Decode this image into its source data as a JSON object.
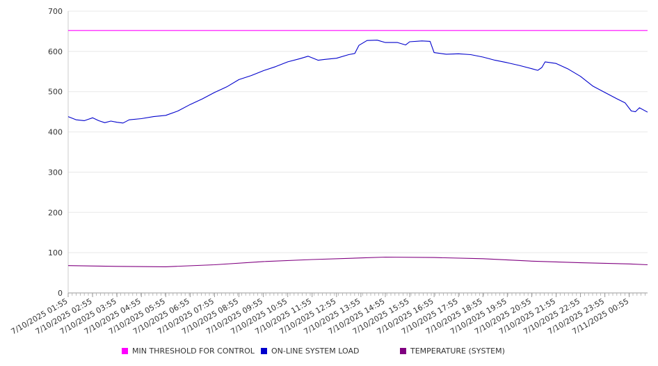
{
  "chart_data": {
    "type": "line",
    "x": [
      "7/10/2025 01:55",
      "7/10/2025 02:55",
      "7/10/2025 03:55",
      "7/10/2025 04:55",
      "7/10/2025 05:55",
      "7/10/2025 06:55",
      "7/10/2025 07:55",
      "7/10/2025 08:55",
      "7/10/2025 09:55",
      "7/10/2025 10:55",
      "7/10/2025 11:55",
      "7/10/2025 12:55",
      "7/10/2025 13:55",
      "7/10/2025 14:55",
      "7/10/2025 15:55",
      "7/10/2025 16:55",
      "7/10/2025 17:55",
      "7/10/2025 18:55",
      "7/10/2025 19:55",
      "7/10/2025 20:55",
      "7/10/2025 21:55",
      "7/10/2025 22:55",
      "7/10/2025 23:55",
      "7/11/2025 00:55"
    ],
    "ylim": [
      0,
      700
    ],
    "yticks": [
      0,
      100,
      200,
      300,
      400,
      500,
      600,
      700
    ],
    "grid": true,
    "legend_position": "bottom",
    "series": [
      {
        "name": "MIN THRESHOLD FOR CONTROL",
        "color": "#ff00ff",
        "points": [
          [
            "7/10/2025 01:55",
            652
          ],
          [
            "7/11/2025 01:40",
            652
          ]
        ]
      },
      {
        "name": "ON-LINE SYSTEM LOAD",
        "color": "#0000cc",
        "points": [
          [
            "7/10/2025 01:55",
            438
          ],
          [
            "7/10/2025 02:15",
            430
          ],
          [
            "7/10/2025 02:35",
            428
          ],
          [
            "7/10/2025 02:55",
            435
          ],
          [
            "7/10/2025 03:10",
            428
          ],
          [
            "7/10/2025 03:25",
            423
          ],
          [
            "7/10/2025 03:40",
            427
          ],
          [
            "7/10/2025 03:55",
            424
          ],
          [
            "7/10/2025 04:10",
            422
          ],
          [
            "7/10/2025 04:25",
            430
          ],
          [
            "7/10/2025 04:55",
            433
          ],
          [
            "7/10/2025 05:25",
            438
          ],
          [
            "7/10/2025 05:55",
            441
          ],
          [
            "7/10/2025 06:25",
            452
          ],
          [
            "7/10/2025 06:55",
            468
          ],
          [
            "7/10/2025 07:25",
            482
          ],
          [
            "7/10/2025 07:55",
            498
          ],
          [
            "7/10/2025 08:25",
            512
          ],
          [
            "7/10/2025 08:55",
            530
          ],
          [
            "7/10/2025 09:25",
            540
          ],
          [
            "7/10/2025 09:55",
            552
          ],
          [
            "7/10/2025 10:25",
            562
          ],
          [
            "7/10/2025 10:55",
            574
          ],
          [
            "7/10/2025 11:25",
            582
          ],
          [
            "7/10/2025 11:45",
            588
          ],
          [
            "7/10/2025 12:10",
            578
          ],
          [
            "7/10/2025 12:25",
            580
          ],
          [
            "7/10/2025 12:55",
            583
          ],
          [
            "7/10/2025 13:25",
            592
          ],
          [
            "7/10/2025 13:40",
            595
          ],
          [
            "7/10/2025 13:50",
            615
          ],
          [
            "7/10/2025 14:10",
            627
          ],
          [
            "7/10/2025 14:35",
            628
          ],
          [
            "7/10/2025 14:55",
            622
          ],
          [
            "7/10/2025 15:25",
            622
          ],
          [
            "7/10/2025 15:45",
            616
          ],
          [
            "7/10/2025 15:55",
            624
          ],
          [
            "7/10/2025 16:25",
            626
          ],
          [
            "7/10/2025 16:45",
            625
          ],
          [
            "7/10/2025 16:55",
            597
          ],
          [
            "7/10/2025 17:25",
            593
          ],
          [
            "7/10/2025 17:55",
            594
          ],
          [
            "7/10/2025 18:25",
            592
          ],
          [
            "7/10/2025 18:55",
            586
          ],
          [
            "7/10/2025 19:25",
            578
          ],
          [
            "7/10/2025 19:55",
            572
          ],
          [
            "7/10/2025 20:25",
            565
          ],
          [
            "7/10/2025 20:55",
            557
          ],
          [
            "7/10/2025 21:10",
            553
          ],
          [
            "7/10/2025 21:20",
            560
          ],
          [
            "7/10/2025 21:28",
            574
          ],
          [
            "7/10/2025 21:55",
            570
          ],
          [
            "7/10/2025 22:25",
            556
          ],
          [
            "7/10/2025 22:55",
            538
          ],
          [
            "7/10/2025 23:25",
            514
          ],
          [
            "7/10/2025 23:55",
            498
          ],
          [
            "7/11/2025 00:25",
            482
          ],
          [
            "7/11/2025 00:45",
            472
          ],
          [
            "7/11/2025 01:00",
            452
          ],
          [
            "7/11/2025 01:10",
            450
          ],
          [
            "7/11/2025 01:20",
            460
          ],
          [
            "7/11/2025 01:40",
            449
          ]
        ]
      },
      {
        "name": "TEMPERATURE (SYSTEM)",
        "color": "#800080",
        "points": [
          [
            "7/10/2025 01:55",
            68
          ],
          [
            "7/10/2025 03:55",
            66
          ],
          [
            "7/10/2025 05:55",
            65
          ],
          [
            "7/10/2025 07:55",
            70
          ],
          [
            "7/10/2025 09:55",
            78
          ],
          [
            "7/10/2025 11:55",
            83
          ],
          [
            "7/10/2025 13:55",
            87
          ],
          [
            "7/10/2025 14:55",
            89
          ],
          [
            "7/10/2025 16:55",
            88
          ],
          [
            "7/10/2025 18:55",
            85
          ],
          [
            "7/10/2025 20:55",
            79
          ],
          [
            "7/10/2025 22:55",
            75
          ],
          [
            "7/11/2025 00:55",
            72
          ],
          [
            "7/11/2025 01:40",
            70
          ]
        ]
      }
    ]
  },
  "legend": {
    "items": [
      {
        "label": "MIN THRESHOLD FOR CONTROL",
        "color": "#ff00ff"
      },
      {
        "label": "ON-LINE SYSTEM LOAD",
        "color": "#0000cc"
      },
      {
        "label": "TEMPERATURE (SYSTEM)",
        "color": "#800080"
      }
    ]
  }
}
